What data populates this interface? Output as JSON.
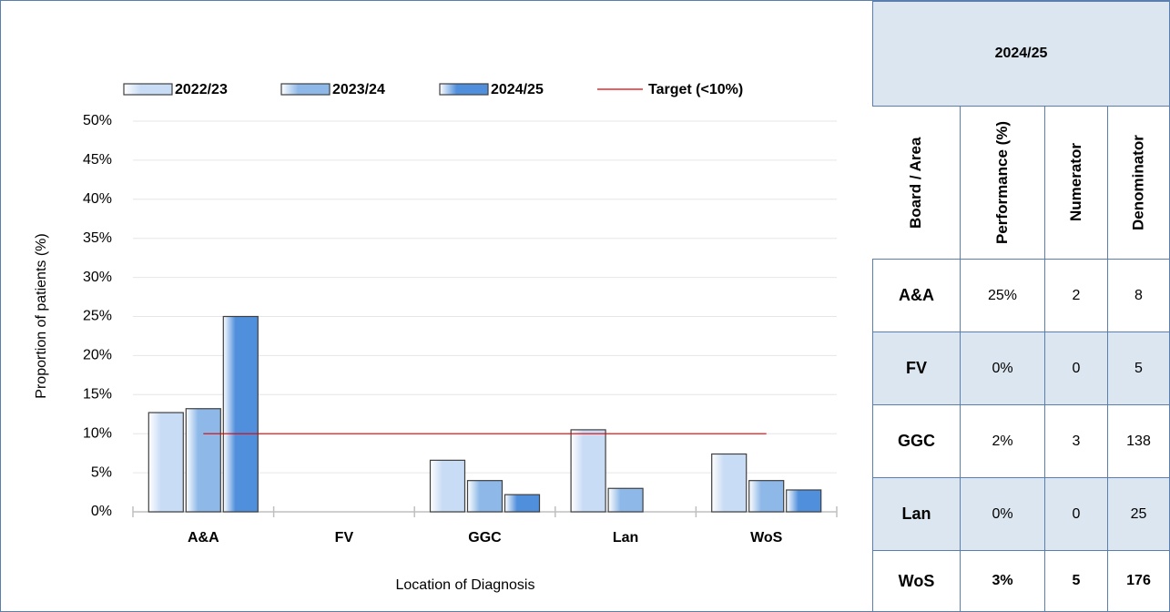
{
  "chart_data": {
    "type": "bar",
    "categories": [
      "A&A",
      "FV",
      "GGC",
      "Lan",
      "WoS"
    ],
    "series": [
      {
        "name": "2022/23",
        "color": "#c9dcf5",
        "values": [
          12.7,
          0,
          6.6,
          10.5,
          7.4
        ]
      },
      {
        "name": "2023/24",
        "color": "#8db8e8",
        "values": [
          13.2,
          0,
          4.0,
          3.0,
          4.0
        ]
      },
      {
        "name": "2024/25",
        "color": "#4f8fdc",
        "values": [
          25.0,
          0,
          2.2,
          0,
          2.8
        ]
      }
    ],
    "target": {
      "name": "Target (<10%)",
      "value": 10,
      "color": "#e00000"
    },
    "xlabel": "Location of Diagnosis",
    "ylabel": "Proportion of patients (%)",
    "ylim": [
      0,
      50
    ],
    "yticks": [
      {
        "value": 0,
        "label": "0%"
      },
      {
        "value": 5,
        "label": "5%"
      },
      {
        "value": 10,
        "label": "10%"
      },
      {
        "value": 15,
        "label": "15%"
      },
      {
        "value": 20,
        "label": "20%"
      },
      {
        "value": 25,
        "label": "25%"
      },
      {
        "value": 30,
        "label": "30%"
      },
      {
        "value": 35,
        "label": "35%"
      },
      {
        "value": 40,
        "label": "40%"
      },
      {
        "value": 45,
        "label": "45%"
      },
      {
        "value": 50,
        "label": "50%"
      }
    ],
    "grid": true
  },
  "table": {
    "title": "2024/25",
    "columns": [
      "Board / Area",
      "Performance (%)",
      "Numerator",
      "Denominator"
    ],
    "rows": [
      [
        "A&A",
        "25%",
        2,
        8
      ],
      [
        "FV",
        "0%",
        0,
        5
      ],
      [
        "GGC",
        "2%",
        3,
        138
      ],
      [
        "Lan",
        "0%",
        0,
        25
      ],
      [
        "WoS",
        "3%",
        5,
        176
      ]
    ]
  }
}
